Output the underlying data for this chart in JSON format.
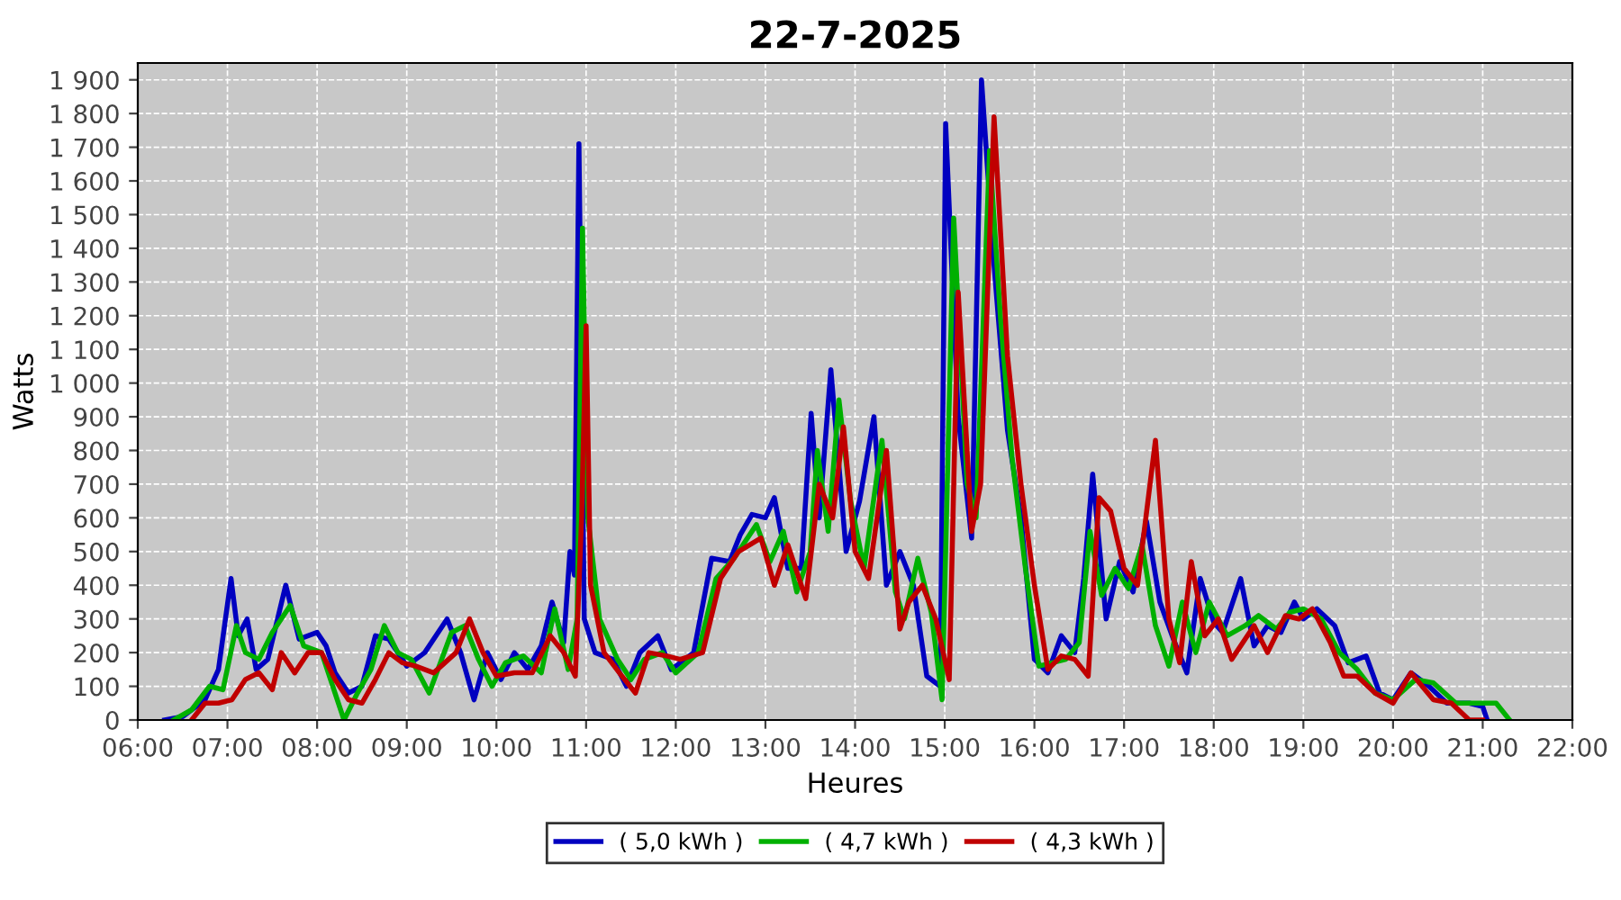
{
  "chart_data": {
    "type": "line",
    "title": "22-7-2025",
    "xlabel": "Heures",
    "ylabel": "Watts",
    "xlim": [
      6,
      22
    ],
    "ylim": [
      0,
      1950
    ],
    "xticks": [
      {
        "value": 6,
        "label": "06:00"
      },
      {
        "value": 7,
        "label": "07:00"
      },
      {
        "value": 8,
        "label": "08:00"
      },
      {
        "value": 9,
        "label": "09:00"
      },
      {
        "value": 10,
        "label": "10:00"
      },
      {
        "value": 11,
        "label": "11:00"
      },
      {
        "value": 12,
        "label": "12:00"
      },
      {
        "value": 13,
        "label": "13:00"
      },
      {
        "value": 14,
        "label": "14:00"
      },
      {
        "value": 15,
        "label": "15:00"
      },
      {
        "value": 16,
        "label": "16:00"
      },
      {
        "value": 17,
        "label": "17:00"
      },
      {
        "value": 18,
        "label": "18:00"
      },
      {
        "value": 19,
        "label": "19:00"
      },
      {
        "value": 20,
        "label": "20:00"
      },
      {
        "value": 21,
        "label": "21:00"
      },
      {
        "value": 22,
        "label": "22:00"
      }
    ],
    "yticks": [
      0,
      100,
      200,
      300,
      400,
      500,
      600,
      700,
      800,
      900,
      {
        "value": 1000,
        "label": "1 000"
      },
      {
        "value": 1100,
        "label": "1 100"
      },
      {
        "value": 1200,
        "label": "1 200"
      },
      {
        "value": 1300,
        "label": "1 300"
      },
      {
        "value": 1400,
        "label": "1 400"
      },
      {
        "value": 1500,
        "label": "1 500"
      },
      {
        "value": 1600,
        "label": "1 600"
      },
      {
        "value": 1700,
        "label": "1 700"
      },
      {
        "value": 1800,
        "label": "1 800"
      },
      {
        "value": 1900,
        "label": "1 900"
      }
    ],
    "grid": true,
    "legend": "bottom",
    "marker": "none",
    "line_style": "solid",
    "series": [
      {
        "name": "( 5,0 kWh )",
        "color": "#0000c0",
        "x": [
          6.3,
          6.5,
          6.75,
          6.9,
          7.04,
          7.12,
          7.22,
          7.32,
          7.45,
          7.65,
          7.8,
          8.0,
          8.1,
          8.2,
          8.35,
          8.5,
          8.65,
          8.8,
          9.0,
          9.2,
          9.45,
          9.6,
          9.75,
          9.9,
          10.05,
          10.2,
          10.35,
          10.5,
          10.62,
          10.75,
          10.82,
          10.87,
          10.92,
          10.98,
          11.1,
          11.3,
          11.45,
          11.6,
          11.8,
          11.95,
          12.2,
          12.4,
          12.6,
          12.72,
          12.85,
          13.0,
          13.1,
          13.25,
          13.4,
          13.51,
          13.6,
          13.73,
          13.9,
          14.05,
          14.21,
          14.35,
          14.5,
          14.65,
          14.8,
          14.95,
          15.01,
          15.15,
          15.3,
          15.41,
          15.55,
          15.7,
          15.85,
          16.0,
          16.15,
          16.3,
          16.45,
          16.55,
          16.65,
          16.8,
          16.95,
          17.1,
          17.25,
          17.4,
          17.55,
          17.7,
          17.85,
          18.0,
          18.1,
          18.3,
          18.45,
          18.6,
          18.75,
          18.9,
          19.0,
          19.15,
          19.35,
          19.5,
          19.7,
          19.85,
          20.0,
          20.2,
          20.4,
          20.6,
          20.85,
          21.0,
          21.05
        ],
        "values": [
          0,
          10,
          60,
          150,
          420,
          250,
          300,
          150,
          180,
          400,
          240,
          260,
          220,
          140,
          80,
          100,
          250,
          240,
          160,
          200,
          300,
          200,
          60,
          200,
          120,
          200,
          150,
          220,
          350,
          230,
          500,
          430,
          1710,
          300,
          200,
          180,
          100,
          200,
          250,
          150,
          200,
          480,
          470,
          550,
          610,
          600,
          660,
          450,
          450,
          910,
          600,
          1040,
          500,
          650,
          900,
          400,
          500,
          400,
          130,
          100,
          1770,
          900,
          540,
          1900,
          1350,
          860,
          600,
          180,
          140,
          250,
          200,
          420,
          730,
          300,
          470,
          380,
          590,
          350,
          240,
          140,
          420,
          290,
          260,
          420,
          220,
          280,
          260,
          350,
          300,
          330,
          280,
          170,
          190,
          80,
          60,
          140,
          100,
          50,
          50,
          40,
          0
        ]
      },
      {
        "name": "( 4,7 kWh )",
        "color": "#00b000",
        "x": [
          6.4,
          6.6,
          6.8,
          6.95,
          7.1,
          7.2,
          7.35,
          7.5,
          7.7,
          7.85,
          8.05,
          8.2,
          8.3,
          8.45,
          8.6,
          8.75,
          8.9,
          9.05,
          9.25,
          9.5,
          9.65,
          9.8,
          9.95,
          10.1,
          10.3,
          10.5,
          10.65,
          10.8,
          10.9,
          10.96,
          11.02,
          11.15,
          11.35,
          11.5,
          11.65,
          11.85,
          12.0,
          12.25,
          12.45,
          12.65,
          12.9,
          13.05,
          13.2,
          13.35,
          13.5,
          13.58,
          13.7,
          13.82,
          13.95,
          14.1,
          14.3,
          14.45,
          14.55,
          14.7,
          14.85,
          14.97,
          15.1,
          15.25,
          15.35,
          15.5,
          15.62,
          15.75,
          15.9,
          16.05,
          16.2,
          16.35,
          16.5,
          16.62,
          16.75,
          16.9,
          17.05,
          17.2,
          17.35,
          17.5,
          17.65,
          17.8,
          17.95,
          18.15,
          18.35,
          18.5,
          18.7,
          18.85,
          19.0,
          19.2,
          19.4,
          19.6,
          19.8,
          20.0,
          20.25,
          20.45,
          20.7,
          20.9,
          21.15,
          21.3
        ],
        "values": [
          0,
          30,
          100,
          90,
          280,
          200,
          180,
          260,
          340,
          220,
          200,
          80,
          0,
          80,
          150,
          280,
          200,
          180,
          80,
          260,
          280,
          180,
          100,
          170,
          190,
          140,
          330,
          150,
          300,
          1460,
          600,
          300,
          180,
          120,
          180,
          200,
          140,
          200,
          420,
          480,
          580,
          470,
          560,
          380,
          500,
          800,
          560,
          950,
          650,
          450,
          830,
          380,
          300,
          480,
          320,
          60,
          1490,
          700,
          600,
          1690,
          1200,
          780,
          450,
          160,
          170,
          180,
          230,
          560,
          370,
          450,
          390,
          520,
          280,
          160,
          350,
          200,
          350,
          250,
          280,
          310,
          270,
          320,
          330,
          300,
          200,
          150,
          80,
          60,
          120,
          110,
          50,
          50,
          50,
          0
        ]
      },
      {
        "name": "( 4,3 kWh )",
        "color": "#c00000",
        "x": [
          6.6,
          6.75,
          6.9,
          7.05,
          7.2,
          7.35,
          7.5,
          7.6,
          7.75,
          7.9,
          8.05,
          8.2,
          8.35,
          8.5,
          8.65,
          8.8,
          8.95,
          9.1,
          9.3,
          9.55,
          9.7,
          9.85,
          10.0,
          10.2,
          10.4,
          10.6,
          10.75,
          10.88,
          10.95,
          11.0,
          11.05,
          11.2,
          11.4,
          11.55,
          11.7,
          11.9,
          12.05,
          12.3,
          12.5,
          12.7,
          12.95,
          13.1,
          13.25,
          13.45,
          13.6,
          13.75,
          13.87,
          14.0,
          14.15,
          14.35,
          14.5,
          14.6,
          14.75,
          14.9,
          15.05,
          15.15,
          15.3,
          15.4,
          15.55,
          15.7,
          15.85,
          16.0,
          16.15,
          16.3,
          16.45,
          16.6,
          16.72,
          16.85,
          17.0,
          17.15,
          17.35,
          17.5,
          17.62,
          17.75,
          17.9,
          18.05,
          18.2,
          18.45,
          18.6,
          18.8,
          18.95,
          19.1,
          19.3,
          19.45,
          19.6,
          19.8,
          20.0,
          20.2,
          20.45,
          20.65,
          20.85,
          21.0
        ],
        "values": [
          0,
          50,
          50,
          60,
          120,
          140,
          90,
          200,
          140,
          200,
          200,
          120,
          60,
          50,
          120,
          200,
          170,
          160,
          140,
          200,
          300,
          200,
          130,
          140,
          140,
          250,
          200,
          130,
          600,
          1170,
          400,
          200,
          130,
          80,
          200,
          190,
          180,
          200,
          420,
          500,
          540,
          400,
          520,
          360,
          700,
          600,
          870,
          500,
          420,
          800,
          270,
          350,
          400,
          300,
          120,
          1270,
          560,
          700,
          1790,
          1080,
          700,
          400,
          150,
          190,
          180,
          130,
          660,
          620,
          450,
          400,
          830,
          300,
          170,
          470,
          250,
          300,
          180,
          280,
          200,
          310,
          300,
          330,
          230,
          130,
          130,
          80,
          50,
          140,
          60,
          50,
          0,
          0
        ]
      }
    ]
  }
}
